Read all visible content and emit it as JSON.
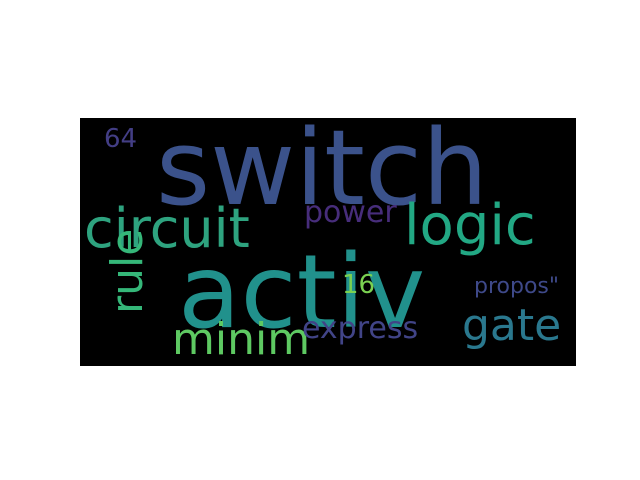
{
  "word_cloud": {
    "background": "#000000",
    "words": [
      {
        "id": "switch",
        "text": "switch",
        "color": "#3b528b"
      },
      {
        "id": "activ",
        "text": "activ",
        "color": "#21918c"
      },
      {
        "id": "circuit",
        "text": "circuit",
        "color": "#2ea37f"
      },
      {
        "id": "logic",
        "text": "logic",
        "color": "#22a884"
      },
      {
        "id": "gate",
        "text": "gate",
        "color": "#2a788e"
      },
      {
        "id": "minim",
        "text": "minim",
        "color": "#5ec962"
      },
      {
        "id": "express",
        "text": "express",
        "color": "#414487"
      },
      {
        "id": "power",
        "text": "power",
        "color": "#472d7b"
      },
      {
        "id": "propos",
        "text": "propos\"",
        "color": "#3e4989"
      },
      {
        "id": "rule",
        "text": "rule",
        "color": "#35b779"
      },
      {
        "id": "n64",
        "text": "64",
        "color": "#433e85"
      },
      {
        "id": "n16",
        "text": "16",
        "color": "#7ad151"
      }
    ]
  }
}
